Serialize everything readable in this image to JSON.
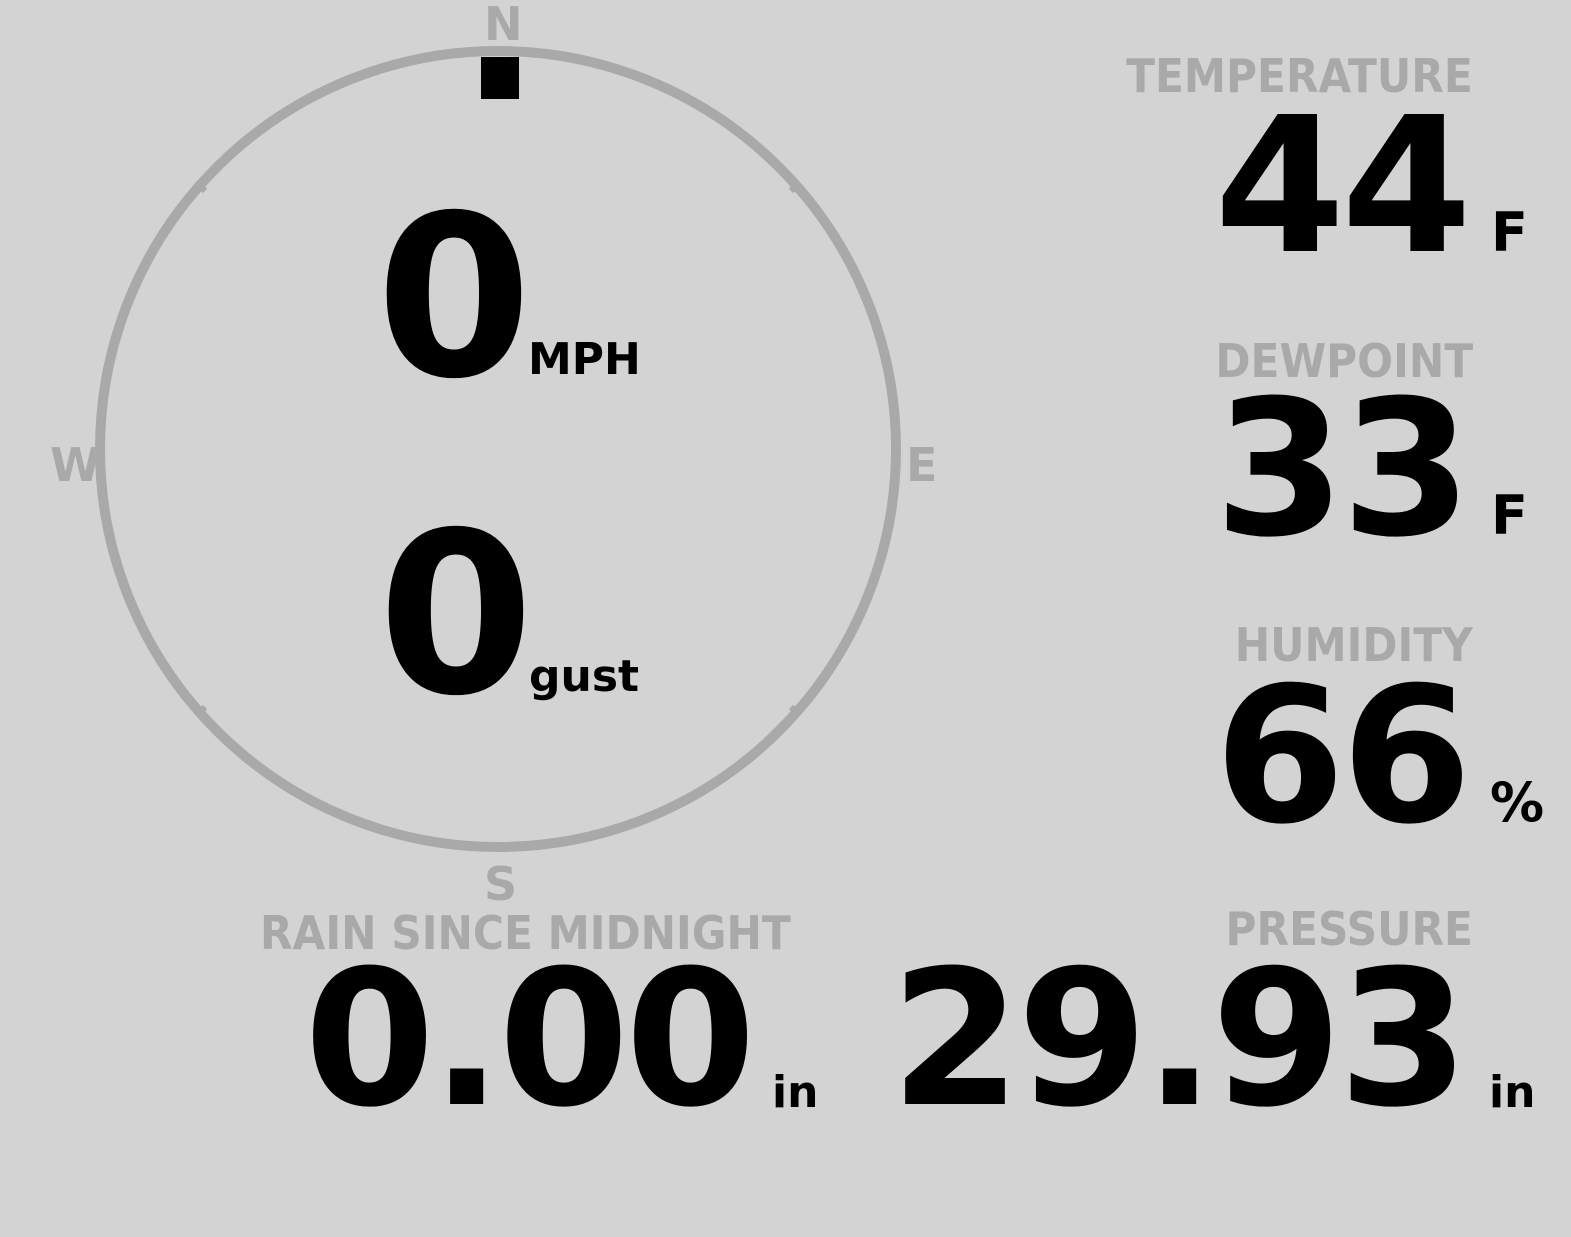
{
  "wind": {
    "compass": {
      "north": "N",
      "east": "E",
      "south": "S",
      "west": "W"
    },
    "speed": "0",
    "speed_unit": "MPH",
    "gust": "0",
    "gust_unit": "gust",
    "direction_degrees": 0
  },
  "temperature": {
    "label": "TEMPERATURE",
    "value": "44",
    "unit": "F"
  },
  "dewpoint": {
    "label": "DEWPOINT",
    "value": "33",
    "unit": "F"
  },
  "humidity": {
    "label": "HUMIDITY",
    "value": "66",
    "unit": "%"
  },
  "rain": {
    "label": "RAIN SINCE MIDNIGHT",
    "value": "0.00",
    "unit": "in"
  },
  "pressure": {
    "label": "PRESSURE",
    "value": "29.93",
    "unit": "in"
  },
  "colors": {
    "background": "#d3d3d3",
    "muted": "#a9a9a9",
    "text": "#000000"
  }
}
